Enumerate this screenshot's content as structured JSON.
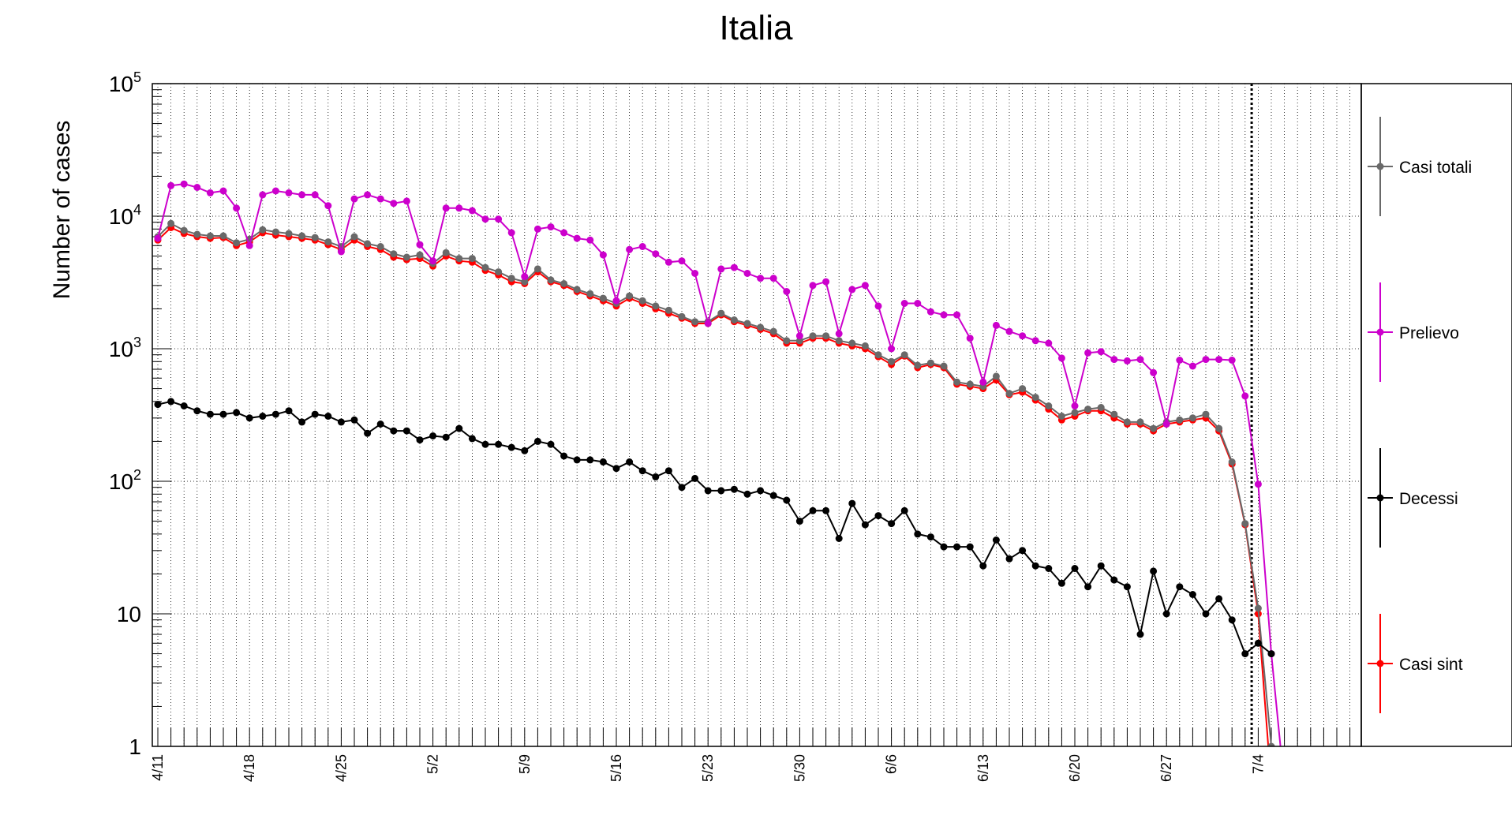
{
  "chart_data": {
    "type": "line",
    "title": "Italia",
    "ylabel": "Number of cases",
    "xlabel": "",
    "yscale": "log",
    "ylim": [
      1,
      100000
    ],
    "y_tick_labels": [
      {
        "value": 1,
        "base": "1",
        "exp": ""
      },
      {
        "value": 10,
        "base": "10",
        "exp": ""
      },
      {
        "value": 100,
        "base": "10",
        "exp": "2"
      },
      {
        "value": 1000,
        "base": "10",
        "exp": "3"
      },
      {
        "value": 10000,
        "base": "10",
        "exp": "4"
      },
      {
        "value": 100000,
        "base": "10",
        "exp": "5"
      }
    ],
    "x_tick_labels": [
      "4/11",
      "4/18",
      "4/25",
      "5/2",
      "5/9",
      "5/16",
      "5/23",
      "5/30",
      "6/6",
      "6/13",
      "6/20",
      "6/27",
      "7/4"
    ],
    "x_start": "4/11",
    "x_range_days": 92,
    "vline_day": 83.5,
    "grid": true,
    "legend_position": "right",
    "series": [
      {
        "name": "Casi totali",
        "color": "#696969",
        "values": [
          7000,
          8800,
          7800,
          7300,
          7100,
          7100,
          6300,
          6700,
          7900,
          7600,
          7400,
          7100,
          6900,
          6400,
          5900,
          7000,
          6200,
          5900,
          5200,
          4900,
          5100,
          4400,
          5300,
          4800,
          4800,
          4100,
          3800,
          3400,
          3200,
          4000,
          3300,
          3100,
          2800,
          2600,
          2400,
          2200,
          2500,
          2300,
          2100,
          1950,
          1750,
          1600,
          1600,
          1850,
          1650,
          1550,
          1450,
          1350,
          1150,
          1150,
          1250,
          1250,
          1150,
          1100,
          1050,
          900,
          800,
          900,
          750,
          780,
          740,
          560,
          540,
          520,
          620,
          460,
          500,
          430,
          370,
          310,
          330,
          350,
          360,
          320,
          280,
          280,
          250,
          280,
          290,
          300,
          320,
          250,
          140,
          48,
          11,
          1,
          0.5
        ]
      },
      {
        "name": "Prelievo",
        "color": "#cc00cc",
        "values": [
          6800,
          17000,
          17500,
          16500,
          15000,
          15500,
          11500,
          6000,
          14500,
          15500,
          15000,
          14500,
          14500,
          12000,
          5400,
          13500,
          14500,
          13500,
          12500,
          13000,
          6100,
          4600,
          11500,
          11500,
          11000,
          9500,
          9500,
          7500,
          3500,
          8000,
          8300,
          7500,
          6800,
          6600,
          5100,
          2300,
          5600,
          5900,
          5200,
          4500,
          4600,
          3700,
          1550,
          4000,
          4100,
          3700,
          3400,
          3400,
          2700,
          1250,
          3000,
          3200,
          1300,
          2800,
          3000,
          2100,
          1000,
          2200,
          2200,
          1900,
          1800,
          1800,
          1200,
          560,
          1500,
          1350,
          1250,
          1150,
          1100,
          850,
          370,
          930,
          950,
          830,
          810,
          830,
          660,
          270,
          820,
          740,
          830,
          830,
          820,
          440,
          95,
          5,
          0.5
        ]
      },
      {
        "name": "Decessi",
        "color": "#000000",
        "values": [
          380,
          400,
          370,
          340,
          320,
          320,
          330,
          300,
          310,
          320,
          340,
          280,
          320,
          310,
          280,
          290,
          230,
          270,
          240,
          240,
          205,
          220,
          215,
          250,
          210,
          190,
          190,
          180,
          170,
          200,
          190,
          155,
          145,
          145,
          140,
          125,
          140,
          120,
          108,
          120,
          90,
          105,
          85,
          85,
          87,
          80,
          85,
          78,
          72,
          50,
          60,
          60,
          37,
          68,
          47,
          55,
          48,
          60,
          40,
          38,
          32,
          32,
          32,
          23,
          36,
          26,
          30,
          23,
          22,
          17,
          22,
          16,
          23,
          18,
          16,
          7,
          21,
          10,
          16,
          14,
          10,
          13,
          9,
          5,
          6,
          5
        ]
      },
      {
        "name": "Casi sint",
        "color": "#ff0000",
        "values": [
          6600,
          8200,
          7400,
          7000,
          6800,
          6900,
          6000,
          6400,
          7500,
          7200,
          7000,
          6800,
          6600,
          6100,
          5600,
          6600,
          5900,
          5600,
          4900,
          4700,
          4800,
          4200,
          5000,
          4600,
          4500,
          3900,
          3600,
          3200,
          3100,
          3800,
          3200,
          3000,
          2700,
          2500,
          2300,
          2100,
          2400,
          2200,
          2000,
          1850,
          1700,
          1550,
          1550,
          1800,
          1600,
          1500,
          1400,
          1300,
          1100,
          1100,
          1200,
          1200,
          1100,
          1050,
          1000,
          870,
          760,
          880,
          720,
          760,
          720,
          540,
          520,
          500,
          580,
          450,
          470,
          410,
          350,
          290,
          310,
          340,
          340,
          300,
          270,
          270,
          240,
          270,
          280,
          290,
          300,
          240,
          135,
          47,
          10,
          0.5
        ]
      }
    ]
  }
}
